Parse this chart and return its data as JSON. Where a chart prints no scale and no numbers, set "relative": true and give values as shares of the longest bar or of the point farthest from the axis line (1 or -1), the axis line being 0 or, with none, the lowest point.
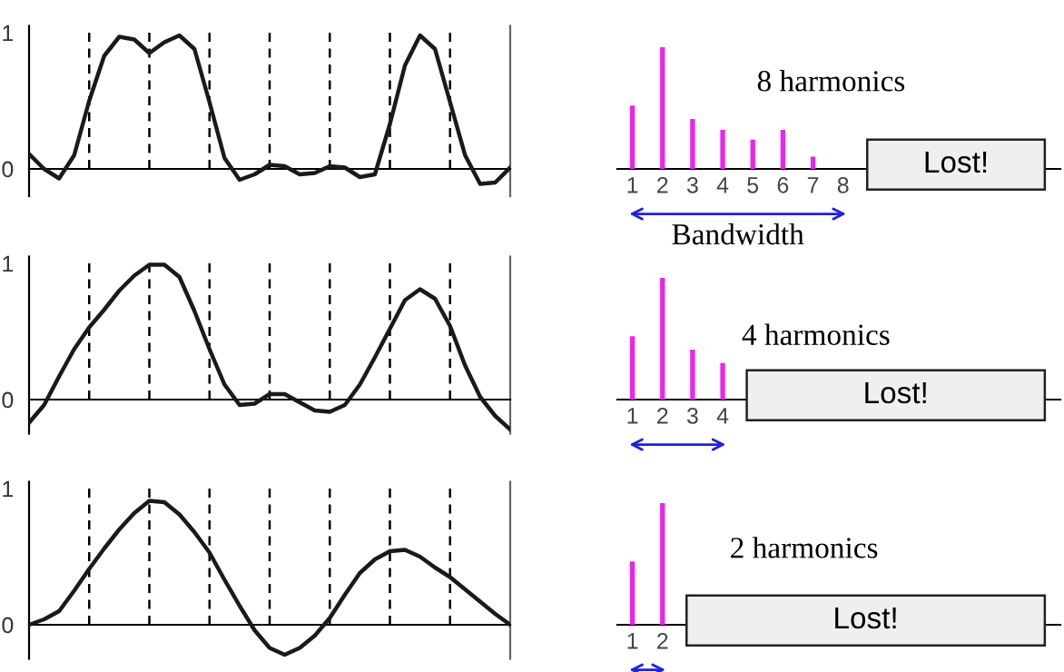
{
  "chart_data": [
    {
      "type": "line",
      "categories": [
        null,
        null,
        null,
        null,
        null,
        null,
        null,
        null,
        null,
        null,
        null,
        null,
        null,
        null,
        null,
        null,
        null,
        null,
        null,
        null,
        null,
        null,
        null,
        null,
        null,
        null,
        null,
        null,
        null,
        null,
        null,
        null,
        null
      ],
      "ylim": [
        -0.2,
        1.05
      ],
      "yticks": [
        0,
        1
      ],
      "tick_labels": "y",
      "grid": "x",
      "marker": "none",
      "line_style": "solid",
      "series": [
        {
          "color": "#1a1a1a",
          "values": [
            0.11,
            0.0,
            -0.07,
            0.1,
            0.5,
            0.83,
            0.97,
            0.95,
            0.85,
            0.93,
            0.98,
            0.88,
            0.49,
            0.08,
            -0.08,
            -0.04,
            0.03,
            0.02,
            -0.04,
            -0.03,
            0.02,
            0.01,
            -0.06,
            -0.04,
            0.33,
            0.76,
            0.98,
            0.88,
            0.49,
            0.1,
            -0.11,
            -0.1,
            0.01
          ]
        }
      ]
    },
    {
      "type": "bar",
      "relative": true,
      "categories": [
        "1",
        "2",
        "3",
        "4",
        "5",
        "6",
        "7",
        "8"
      ],
      "tick_labels": "x",
      "annotations": [
        "8 harmonics",
        "Lost!",
        "Bandwidth"
      ],
      "series": [
        {
          "color": "#ee22ee",
          "values": [
            0.52,
            1,
            0.41,
            0.32,
            0.24,
            0.32,
            0.1,
            null
          ]
        }
      ]
    },
    {
      "type": "line",
      "categories": [
        null,
        null,
        null,
        null,
        null,
        null,
        null,
        null,
        null,
        null,
        null,
        null,
        null,
        null,
        null,
        null,
        null,
        null,
        null,
        null,
        null,
        null,
        null,
        null,
        null,
        null,
        null,
        null,
        null,
        null,
        null,
        null,
        null
      ],
      "ylim": [
        -0.25,
        1.05
      ],
      "yticks": [
        0,
        1
      ],
      "tick_labels": "y",
      "grid": "x",
      "marker": "none",
      "line_style": "solid",
      "series": [
        {
          "color": "#1a1a1a",
          "values": [
            -0.17,
            -0.04,
            0.17,
            0.37,
            0.53,
            0.66,
            0.8,
            0.91,
            0.99,
            0.99,
            0.9,
            0.65,
            0.37,
            0.11,
            -0.04,
            -0.03,
            0.04,
            0.04,
            -0.02,
            -0.08,
            -0.09,
            -0.04,
            0.11,
            0.31,
            0.52,
            0.73,
            0.81,
            0.74,
            0.54,
            0.25,
            0.02,
            -0.12,
            -0.22
          ]
        }
      ]
    },
    {
      "type": "bar",
      "relative": true,
      "categories": [
        "1",
        "2",
        "3",
        "4"
      ],
      "tick_labels": "x",
      "annotations": [
        "4 harmonics",
        "Lost!"
      ],
      "series": [
        {
          "color": "#ee22ee",
          "values": [
            0.52,
            1,
            0.41,
            0.3
          ]
        }
      ]
    },
    {
      "type": "line",
      "categories": [
        null,
        null,
        null,
        null,
        null,
        null,
        null,
        null,
        null,
        null,
        null,
        null,
        null,
        null,
        null,
        null,
        null,
        null,
        null,
        null,
        null,
        null,
        null,
        null,
        null,
        null,
        null,
        null,
        null,
        null,
        null,
        null,
        null
      ],
      "ylim": [
        -0.25,
        1.05
      ],
      "yticks": [
        0,
        1
      ],
      "tick_labels": "y",
      "grid": "x",
      "marker": "none",
      "line_style": "solid",
      "series": [
        {
          "color": "#1a1a1a",
          "values": [
            0,
            0.04,
            0.1,
            0.25,
            0.41,
            0.56,
            0.7,
            0.82,
            0.91,
            0.9,
            0.81,
            0.68,
            0.53,
            0.33,
            0.14,
            -0.04,
            -0.17,
            -0.22,
            -0.17,
            -0.08,
            0.05,
            0.22,
            0.38,
            0.48,
            0.54,
            0.55,
            0.5,
            0.42,
            0.35,
            0.26,
            0.17,
            0.08,
            0
          ]
        }
      ]
    },
    {
      "type": "bar",
      "relative": true,
      "categories": [
        "1",
        "2"
      ],
      "tick_labels": "x",
      "annotations": [
        "2 harmonics",
        "Lost!"
      ],
      "series": [
        {
          "color": "#ee22ee",
          "values": [
            0.52,
            1
          ]
        }
      ]
    }
  ]
}
